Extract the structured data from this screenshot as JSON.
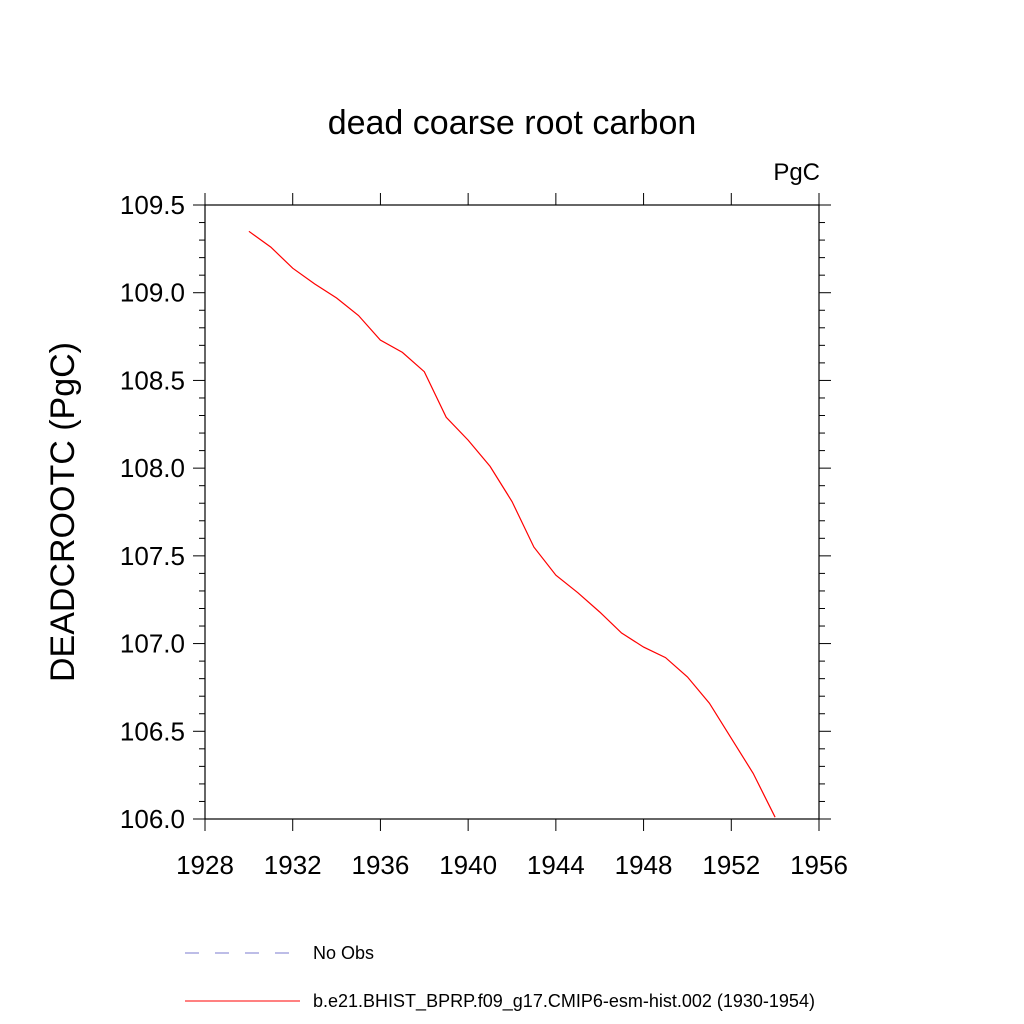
{
  "chart_data": {
    "type": "line",
    "title": "dead coarse root carbon",
    "units_label": "PgC",
    "ylabel": "DEADCROOTC  (PgC)",
    "xlabel": "",
    "xlim": [
      1928,
      1956
    ],
    "ylim": [
      106.0,
      109.5
    ],
    "x_ticks": [
      1928,
      1932,
      1936,
      1940,
      1944,
      1948,
      1952,
      1956
    ],
    "x_tick_labels": [
      "1928",
      "1932",
      "1936",
      "1940",
      "1944",
      "1948",
      "1952",
      "1956"
    ],
    "y_ticks": [
      106.0,
      106.5,
      107.0,
      107.5,
      108.0,
      108.5,
      109.0,
      109.5
    ],
    "y_tick_labels": [
      "106.0",
      "106.5",
      "107.0",
      "107.5",
      "108.0",
      "108.5",
      "109.0",
      "109.5"
    ],
    "grid": false,
    "legend_position": "bottom",
    "series": [
      {
        "name": "b.e21.BHIST_BPRP.f09_g17.CMIP6-esm-hist.002 (1930-1954)",
        "color": "#ff0000",
        "style": "solid",
        "x": [
          1930,
          1931,
          1932,
          1933,
          1934,
          1935,
          1936,
          1937,
          1938,
          1939,
          1940,
          1941,
          1942,
          1943,
          1944,
          1945,
          1946,
          1947,
          1948,
          1949,
          1950,
          1951,
          1952,
          1953,
          1954
        ],
        "values": [
          109.35,
          109.26,
          109.14,
          109.05,
          108.97,
          108.87,
          108.73,
          108.66,
          108.55,
          108.29,
          108.16,
          108.01,
          107.81,
          107.55,
          107.39,
          107.29,
          107.18,
          107.06,
          106.98,
          106.92,
          106.81,
          106.66,
          106.46,
          106.26,
          106.01
        ]
      }
    ],
    "legend": [
      {
        "label": "No Obs",
        "color": "#7b7bcf",
        "style": "dashed"
      },
      {
        "label": "b.e21.BHIST_BPRP.f09_g17.CMIP6-esm-hist.002 (1930-1954)",
        "color": "#ff0000",
        "style": "solid"
      }
    ]
  }
}
